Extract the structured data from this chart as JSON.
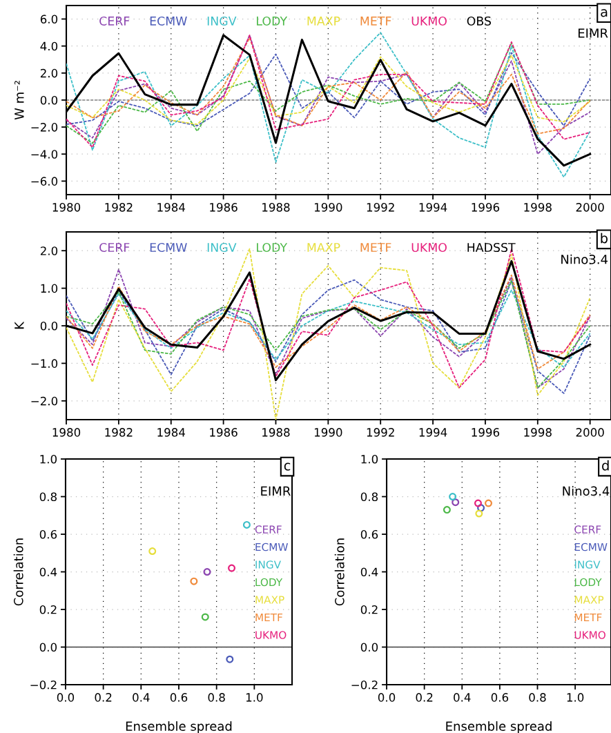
{
  "chart_data": [
    {
      "type": "line",
      "ylabel": "W m⁻²",
      "xlim": [
        1980,
        2000.8
      ],
      "ylim": [
        -7,
        7
      ],
      "grid": true,
      "legend": "top",
      "xticks": [
        1980,
        1982,
        1984,
        1986,
        1988,
        1990,
        1992,
        1994,
        1996,
        1998,
        2000
      ],
      "yticks": [
        {
          "value": -6,
          "label": "−6.0"
        },
        {
          "value": -4,
          "label": "−4.0"
        },
        {
          "value": -2,
          "label": "−2.0"
        },
        {
          "value": 0,
          "label": "0.0"
        },
        {
          "value": 2,
          "label": "2.0"
        },
        {
          "value": 4,
          "label": "4.0"
        },
        {
          "value": 6,
          "label": "6.0"
        }
      ],
      "x": [
        1980,
        1981,
        1982,
        1983,
        1984,
        1985,
        1986,
        1987,
        1988,
        1989,
        1990,
        1991,
        1992,
        1993,
        1994,
        1995,
        1996,
        1997,
        1998,
        1999,
        2000
      ],
      "ref_lines": [
        {
          "axis": "y",
          "value": 0,
          "color": "#808080",
          "line_style": "dashed"
        }
      ],
      "annotations": [
        "a",
        "EIMR"
      ],
      "series": [
        {
          "name": "CERF",
          "color": "#8b44b0",
          "line_style": "dashed",
          "values": [
            -1.5,
            -2.8,
            0.7,
            1.2,
            -0.6,
            -1.1,
            0.3,
            4.8,
            -1.2,
            -1.9,
            1.7,
            1.3,
            1.4,
            1.9,
            -1.3,
            1.3,
            -0.9,
            2.9,
            -4.0,
            -2.0,
            -0.9
          ]
        },
        {
          "name": "ECMW",
          "color": "#4a5ab8",
          "line_style": "dashed",
          "values": [
            -1.8,
            -1.5,
            -0.1,
            -0.6,
            -1.5,
            -1.9,
            -0.7,
            0.5,
            3.4,
            -0.6,
            0.6,
            -1.3,
            1.4,
            -0.3,
            0.6,
            0.8,
            -1.1,
            3.5,
            0.6,
            -1.9,
            1.6
          ]
        },
        {
          "name": "INGV",
          "color": "#3cbfc8",
          "line_style": "dashed",
          "values": [
            2.7,
            -3.7,
            1.4,
            2.1,
            -1.9,
            -0.4,
            1.6,
            3.3,
            -4.6,
            1.5,
            0.5,
            3.0,
            5.0,
            1.9,
            -1.4,
            -2.8,
            -3.5,
            4.0,
            -2.6,
            -5.7,
            -2.3
          ]
        },
        {
          "name": "LODY",
          "color": "#4cb848",
          "line_style": "dashed",
          "values": [
            -1.9,
            -3.2,
            -0.4,
            -0.9,
            0.7,
            -2.3,
            0.8,
            1.4,
            -0.8,
            0.6,
            1.1,
            0.3,
            -0.3,
            0.1,
            -0.1,
            1.3,
            -0.1,
            4.2,
            -0.3,
            -0.3,
            0.0
          ]
        },
        {
          "name": "MAXP",
          "color": "#e6de3c",
          "line_style": "dashed",
          "values": [
            -0.4,
            -1.3,
            0.8,
            0.0,
            -1.5,
            -1.8,
            0.0,
            3.1,
            -1.2,
            -0.9,
            1.0,
            -0.2,
            3.2,
            1.0,
            -0.2,
            -0.9,
            -0.2,
            3.3,
            -1.3,
            -1.6,
            -0.1
          ]
        },
        {
          "name": "METF",
          "color": "#f08a3a",
          "line_style": "dashed",
          "values": [
            -0.1,
            -1.3,
            -0.8,
            1.1,
            -0.2,
            -1.1,
            1.0,
            4.6,
            -1.1,
            -1.9,
            1.0,
            1.3,
            0.0,
            2.1,
            -1.3,
            0.6,
            -0.6,
            1.9,
            -2.5,
            -2.1,
            0.0
          ]
        },
        {
          "name": "UKMO",
          "color": "#e6207c",
          "line_style": "dashed",
          "values": [
            -1.4,
            -3.5,
            1.8,
            1.4,
            -1.1,
            -0.8,
            0.2,
            4.8,
            -2.2,
            -1.8,
            -1.4,
            1.5,
            1.9,
            1.9,
            -0.1,
            -0.2,
            -0.3,
            4.3,
            -0.4,
            -2.9,
            -2.4
          ]
        },
        {
          "name": "OBS",
          "color": "#000000",
          "line_style": "solid",
          "values": [
            -0.86,
            1.8,
            3.46,
            0.43,
            -0.34,
            -0.34,
            4.8,
            3.35,
            -3.17,
            4.46,
            -0.09,
            -0.6,
            2.97,
            -0.69,
            -1.58,
            -0.94,
            -1.89,
            1.2,
            -2.88,
            -4.85,
            -4.0
          ]
        }
      ]
    },
    {
      "type": "line",
      "ylabel": "K",
      "xlim": [
        1980,
        2000.8
      ],
      "ylim": [
        -2.5,
        2.5
      ],
      "grid": true,
      "legend": "top",
      "xticks": [
        1980,
        1982,
        1984,
        1986,
        1988,
        1990,
        1992,
        1994,
        1996,
        1998,
        2000
      ],
      "yticks": [
        {
          "value": -2,
          "label": "−2.0"
        },
        {
          "value": -1,
          "label": "−1.0"
        },
        {
          "value": 0,
          "label": "0.0"
        },
        {
          "value": 1,
          "label": "1.0"
        },
        {
          "value": 2,
          "label": "2.0"
        }
      ],
      "x": [
        1980,
        1981,
        1982,
        1983,
        1984,
        1985,
        1986,
        1987,
        1988,
        1989,
        1990,
        1991,
        1992,
        1993,
        1994,
        1995,
        1996,
        1997,
        1998,
        1999,
        2000
      ],
      "ref_lines": [
        {
          "axis": "y",
          "value": 0,
          "color": "#808080",
          "line_style": "dashed"
        }
      ],
      "annotations": [
        "b",
        "Nino3.4"
      ],
      "series": [
        {
          "name": "CERF",
          "color": "#8b44b0",
          "line_style": "dashed",
          "values": [
            0.2,
            -0.5,
            1.5,
            -0.45,
            -0.55,
            0.1,
            0.5,
            0.4,
            -1.3,
            0.2,
            0.4,
            0.45,
            -0.27,
            0.45,
            -0.3,
            -0.82,
            -0.2,
            1.3,
            -1.65,
            -1.15,
            0.25
          ]
        },
        {
          "name": "ECMW",
          "color": "#4a5ab8",
          "line_style": "dashed",
          "values": [
            0.8,
            -0.4,
            0.9,
            -0.1,
            -1.3,
            0.0,
            0.45,
            0.1,
            -0.95,
            0.3,
            0.95,
            1.22,
            0.7,
            0.5,
            0.4,
            -0.7,
            -0.6,
            1.2,
            -1.2,
            -1.8,
            -0.25
          ]
        },
        {
          "name": "INGV",
          "color": "#3cbfc8",
          "line_style": "dashed",
          "values": [
            0.4,
            -0.35,
            0.85,
            -0.1,
            -0.6,
            -0.05,
            0.35,
            0.1,
            -0.9,
            0.0,
            0.4,
            0.65,
            0.5,
            0.35,
            -0.1,
            -0.5,
            -0.45,
            0.95,
            -0.6,
            -1.1,
            -0.2
          ]
        },
        {
          "name": "LODY",
          "color": "#4cb848",
          "line_style": "dashed",
          "values": [
            0.25,
            0.05,
            0.9,
            -0.65,
            -0.75,
            0.15,
            0.5,
            0.3,
            -0.65,
            0.25,
            0.42,
            0.45,
            -0.1,
            0.4,
            0.05,
            -0.6,
            -0.2,
            1.2,
            -1.65,
            -0.9,
            0.0
          ]
        },
        {
          "name": "MAXP",
          "color": "#e6de3c",
          "line_style": "dashed",
          "values": [
            -0.05,
            -1.5,
            0.7,
            -0.6,
            -1.75,
            -0.95,
            0.3,
            2.05,
            -2.5,
            0.85,
            1.6,
            0.75,
            1.55,
            1.47,
            -1.0,
            -1.65,
            -0.3,
            1.9,
            -1.85,
            -0.95,
            0.75
          ]
        },
        {
          "name": "METF",
          "color": "#f08a3a",
          "line_style": "dashed",
          "values": [
            0.25,
            -0.6,
            1.05,
            -0.15,
            -0.5,
            0.0,
            0.25,
            0.05,
            -1.1,
            -0.55,
            -0.05,
            0.55,
            0.15,
            0.5,
            0.05,
            -0.68,
            -0.15,
            1.35,
            -1.15,
            -0.7,
            0.3
          ]
        },
        {
          "name": "UKMO",
          "color": "#e6207c",
          "line_style": "dashed",
          "values": [
            0.6,
            -1.05,
            0.55,
            0.45,
            -0.55,
            -0.45,
            -0.65,
            1.25,
            -1.35,
            -0.15,
            -0.25,
            0.75,
            0.95,
            1.17,
            0.0,
            -1.65,
            -0.9,
            2.05,
            -0.65,
            -0.7,
            0.25
          ]
        },
        {
          "name": "HADSST",
          "color": "#000000",
          "line_style": "solid",
          "values": [
            0.0,
            -0.2,
            0.98,
            -0.05,
            -0.5,
            -0.58,
            0.25,
            1.42,
            -1.45,
            -0.5,
            0.12,
            0.48,
            0.13,
            0.36,
            0.35,
            -0.21,
            -0.21,
            1.72,
            -0.68,
            -0.88,
            -0.5
          ]
        }
      ]
    },
    {
      "type": "scatter",
      "xlabel": "Ensemble spread",
      "ylabel": "Correlation",
      "xlim": [
        0,
        1.2
      ],
      "ylim": [
        -0.2,
        1.0
      ],
      "grid": true,
      "legend": "right",
      "marker": "circle",
      "xticks": [
        {
          "value": 0,
          "label": "0.0"
        },
        {
          "value": 0.2,
          "label": "0.2"
        },
        {
          "value": 0.4,
          "label": "0.4"
        },
        {
          "value": 0.6,
          "label": "0.6"
        },
        {
          "value": 0.8,
          "label": "0.8"
        },
        {
          "value": 1.0,
          "label": "1.0"
        }
      ],
      "yticks": [
        {
          "value": -0.2,
          "label": "−0.2"
        },
        {
          "value": 0,
          "label": "0.0"
        },
        {
          "value": 0.2,
          "label": "0.2"
        },
        {
          "value": 0.4,
          "label": "0.4"
        },
        {
          "value": 0.6,
          "label": "0.6"
        },
        {
          "value": 0.8,
          "label": "0.8"
        },
        {
          "value": 1.0,
          "label": "1.0"
        }
      ],
      "ref_lines": [
        {
          "axis": "y",
          "value": 0,
          "color": "#404040",
          "line_style": "solid"
        }
      ],
      "annotations": [
        "c",
        "EIMR"
      ],
      "series": [
        {
          "name": "CERF",
          "color": "#8b44b0",
          "x": [
            0.75
          ],
          "values": [
            0.4
          ]
        },
        {
          "name": "ECMW",
          "color": "#4a5ab8",
          "x": [
            0.87
          ],
          "values": [
            -0.065
          ]
        },
        {
          "name": "INGV",
          "color": "#3cbfc8",
          "x": [
            0.96
          ],
          "values": [
            0.65
          ]
        },
        {
          "name": "LODY",
          "color": "#4cb848",
          "x": [
            0.74
          ],
          "values": [
            0.16
          ]
        },
        {
          "name": "MAXP",
          "color": "#e6de3c",
          "x": [
            0.46
          ],
          "values": [
            0.51
          ]
        },
        {
          "name": "METF",
          "color": "#f08a3a",
          "x": [
            0.68
          ],
          "values": [
            0.35
          ]
        },
        {
          "name": "UKMO",
          "color": "#e6207c",
          "x": [
            0.88
          ],
          "values": [
            0.42
          ]
        }
      ]
    },
    {
      "type": "scatter",
      "xlabel": "Ensemble spread",
      "ylabel": "Correlation",
      "xlim": [
        0,
        1.19
      ],
      "ylim": [
        -0.2,
        1.0
      ],
      "grid": true,
      "legend": "right",
      "marker": "circle",
      "xticks": [
        {
          "value": 0,
          "label": "0.0"
        },
        {
          "value": 0.2,
          "label": "0.2"
        },
        {
          "value": 0.4,
          "label": "0.4"
        },
        {
          "value": 0.6,
          "label": "0.6"
        },
        {
          "value": 0.8,
          "label": "0.8"
        },
        {
          "value": 1.0,
          "label": "1.0"
        }
      ],
      "yticks": [
        {
          "value": -0.2,
          "label": "−0.2"
        },
        {
          "value": 0,
          "label": "0.0"
        },
        {
          "value": 0.2,
          "label": "0.2"
        },
        {
          "value": 0.4,
          "label": "0.4"
        },
        {
          "value": 0.6,
          "label": "0.6"
        },
        {
          "value": 0.8,
          "label": "0.8"
        },
        {
          "value": 1.0,
          "label": "1.0"
        }
      ],
      "ref_lines": [
        {
          "axis": "y",
          "value": 0,
          "color": "#404040",
          "line_style": "solid"
        }
      ],
      "annotations": [
        "d",
        "Nino3.4"
      ],
      "series": [
        {
          "name": "CERF",
          "color": "#8b44b0",
          "x": [
            0.365
          ],
          "values": [
            0.77
          ]
        },
        {
          "name": "ECMW",
          "color": "#4a5ab8",
          "x": [
            0.5
          ],
          "values": [
            0.74
          ]
        },
        {
          "name": "INGV",
          "color": "#3cbfc8",
          "x": [
            0.35
          ],
          "values": [
            0.8
          ]
        },
        {
          "name": "LODY",
          "color": "#4cb848",
          "x": [
            0.32
          ],
          "values": [
            0.73
          ]
        },
        {
          "name": "MAXP",
          "color": "#e6de3c",
          "x": [
            0.49
          ],
          "values": [
            0.71
          ]
        },
        {
          "name": "METF",
          "color": "#f08a3a",
          "x": [
            0.54
          ],
          "values": [
            0.765
          ]
        },
        {
          "name": "UKMO",
          "color": "#e6207c",
          "x": [
            0.485
          ],
          "values": [
            0.765
          ]
        }
      ]
    }
  ]
}
